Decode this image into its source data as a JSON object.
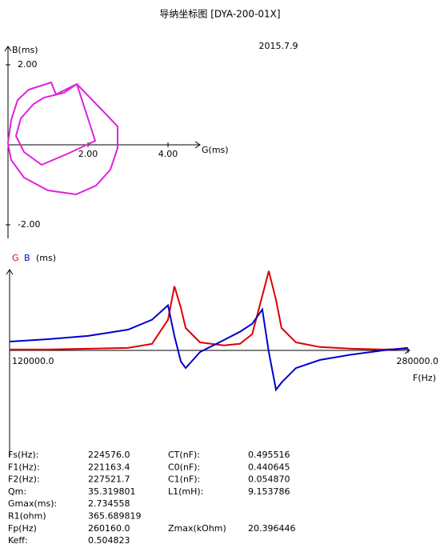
{
  "title": "导纳坐标图  [DYA-200-01X]",
  "date": "2015.7.9",
  "chart_data": [
    {
      "type": "line",
      "x_label": "G(ms)",
      "y_label": "B(ms)",
      "x": [
        0,
        0.08,
        0.24,
        0.52,
        1.08,
        1.2,
        1.72,
        2.18,
        1.5,
        0.84,
        0.4,
        0.2,
        0.32,
        0.64,
        0.9,
        1.4,
        1.72,
        2.3,
        2.74,
        2.74,
        2.56,
        2.2,
        1.7,
        1.0,
        0.4,
        0.08,
        0
      ],
      "series": [
        {
          "color": "#e020e0",
          "values": [
            0.06,
            0.62,
            1.12,
            1.38,
            1.56,
            1.26,
            1.52,
            0.1,
            -0.22,
            -0.5,
            -0.18,
            0.22,
            0.66,
            1.02,
            1.18,
            1.3,
            1.52,
            0.92,
            0.46,
            -0.08,
            -0.62,
            -1.02,
            -1.24,
            -1.14,
            -0.82,
            -0.38,
            0.02
          ]
        }
      ],
      "xlim": [
        0,
        4.8
      ],
      "ylim": [
        -2.34,
        2.38
      ],
      "xticks": [
        {
          "value": 2,
          "label": "2.00"
        },
        {
          "value": 4,
          "label": "4.00"
        }
      ],
      "yticks": [
        {
          "value": 2,
          "label": "2.00"
        },
        {
          "value": -2,
          "label": "-2.00"
        }
      ]
    },
    {
      "type": "line",
      "x_label": "F(Hz)",
      "y_label": "(ms)",
      "x": [
        120000,
        135400,
        151500,
        167600,
        177200,
        183600,
        186200,
        188800,
        190700,
        196500,
        206100,
        212500,
        217400,
        221500,
        224100,
        227000,
        229200,
        235000,
        244700,
        257500,
        270400,
        280000
      ],
      "series": [
        {
          "name": "G",
          "color": "#dd0000",
          "values": [
            0.03,
            0.03,
            0.06,
            0.09,
            0.24,
            1.12,
            2.35,
            1.56,
            0.82,
            0.29,
            0.18,
            0.24,
            0.59,
            2.0,
            2.91,
            1.85,
            0.82,
            0.29,
            0.12,
            0.06,
            0.03,
            0.06
          ]
        },
        {
          "name": "B",
          "color": "#0000cc",
          "values": [
            0.32,
            0.41,
            0.53,
            0.76,
            1.12,
            1.65,
            0.53,
            -0.41,
            -0.65,
            -0.06,
            0.38,
            0.68,
            0.97,
            1.5,
            -0.06,
            -1.44,
            -1.18,
            -0.65,
            -0.35,
            -0.15,
            0,
            0.09
          ]
        }
      ],
      "xlim": [
        120000,
        280000
      ],
      "ylim": [
        -3.9,
        2.9
      ],
      "xticks": [
        {
          "value": 120000,
          "label": "120000.0"
        },
        {
          "value": 280000,
          "label": "280000.0"
        }
      ]
    }
  ],
  "table": {
    "rows": [
      [
        "Fs(Hz):",
        "224576.0",
        "CT(nF):",
        "0.495516"
      ],
      [
        "F1(Hz):",
        "221163.4",
        "C0(nF):",
        "0.440645"
      ],
      [
        "F2(Hz):",
        "227521.7",
        "C1(nF):",
        "0.054870"
      ],
      [
        "Qm:",
        "35.319801",
        "L1(mH):",
        "9.153786"
      ],
      [
        "Gmax(ms):",
        "2.734558"
      ],
      [
        "R1(ohm)",
        "365.689819"
      ],
      [
        "Fp(Hz)",
        "260160.0",
        "Zmax(kOhm)",
        "20.396446"
      ],
      [
        "Keff:",
        "0.504823"
      ]
    ]
  }
}
